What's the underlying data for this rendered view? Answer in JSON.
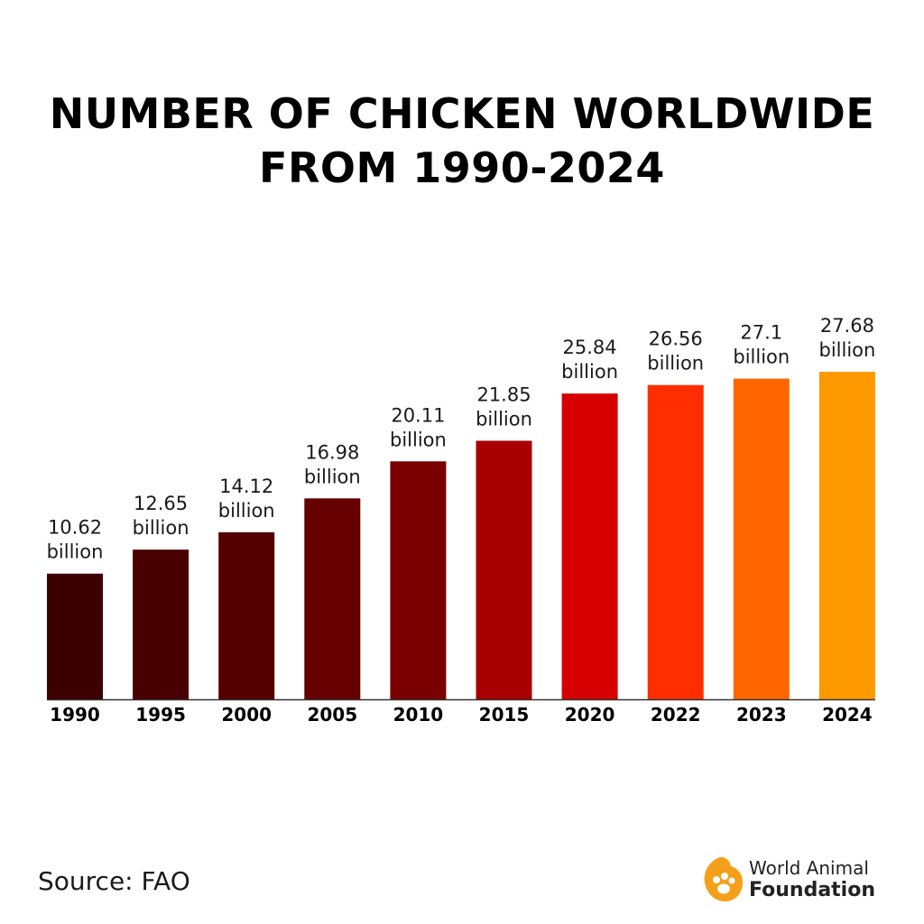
{
  "title_lines": [
    "NUMBER OF CHICKEN WORLDWIDE",
    "FROM 1990-2024"
  ],
  "source": "Source: FAO",
  "logo": {
    "line1": "World Animal",
    "line2": "Foundation",
    "color": "#f5a01a"
  },
  "chart_data": {
    "type": "bar",
    "title": "NUMBER OF CHICKEN WORLDWIDE FROM 1990-2024",
    "categories": [
      "1990",
      "1995",
      "2000",
      "2005",
      "2010",
      "2015",
      "2020",
      "2022",
      "2023",
      "2024"
    ],
    "values": [
      10.62,
      12.65,
      14.12,
      16.98,
      20.11,
      21.85,
      25.84,
      26.56,
      27.1,
      27.68
    ],
    "value_labels": [
      "10.62",
      "12.65",
      "14.12",
      "16.98",
      "20.11",
      "21.85",
      "25.84",
      "26.56",
      "27.1",
      "27.68"
    ],
    "value_suffix": "billion",
    "bar_colors": [
      "#3d0000",
      "#480000",
      "#550000",
      "#660000",
      "#7a0000",
      "#a80000",
      "#d60000",
      "#ff2e00",
      "#ff6600",
      "#ff9900"
    ],
    "xlabel": "",
    "ylabel": "",
    "ylim": [
      0,
      27.68
    ],
    "grid": false,
    "legend": "none"
  }
}
